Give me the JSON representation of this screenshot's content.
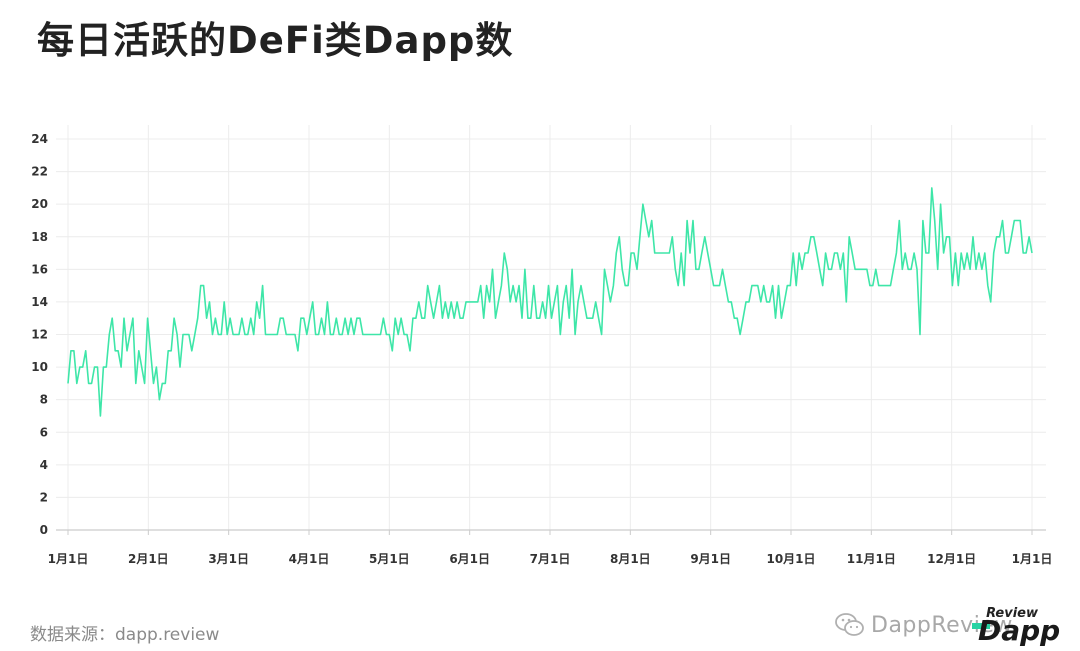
{
  "title": "每日活跃的DeFi类Dapp数",
  "source": "数据来源：dapp.review",
  "watermark": {
    "text": "DappReview",
    "icon": "wechat-icon"
  },
  "logo": {
    "review": "Review",
    "word": "Dapp"
  },
  "colors": {
    "line": "#3ee6a8",
    "grid": "#ececec",
    "axis": "#cccccc",
    "tick_text": "#333333"
  },
  "chart_data": {
    "type": "line",
    "title": "每日活跃的DeFi类Dapp数",
    "xlabel": "",
    "ylabel": "",
    "ylim": [
      0,
      24
    ],
    "yticks": [
      0,
      2,
      4,
      6,
      8,
      10,
      12,
      14,
      16,
      18,
      20,
      22,
      24
    ],
    "xticks": [
      "1月1日",
      "2月1日",
      "3月1日",
      "4月1日",
      "5月1日",
      "6月1日",
      "7月1日",
      "8月1日",
      "9月1日",
      "10月1日",
      "11月1日",
      "12月1日",
      "1月1日"
    ],
    "grid": true,
    "legend": "none",
    "series": [
      {
        "values": [
          9,
          11,
          11,
          9,
          10,
          10,
          11,
          9,
          9,
          10,
          10,
          7,
          10,
          10,
          12,
          13,
          11,
          11,
          10,
          13,
          11,
          12,
          13,
          9,
          11,
          10,
          9,
          13,
          11,
          9,
          10,
          8,
          9,
          9,
          11,
          11,
          13,
          12,
          10,
          12,
          12,
          12,
          11,
          12,
          13,
          15,
          15,
          13,
          14,
          12,
          13,
          12,
          12,
          14,
          12,
          13,
          12,
          12,
          12,
          13,
          12,
          12,
          13,
          12,
          14,
          13,
          15,
          12,
          12,
          12,
          12,
          12,
          13,
          13,
          12,
          12,
          12,
          12,
          11,
          13,
          13,
          12,
          13,
          14,
          12,
          12,
          13,
          12,
          14,
          12,
          12,
          13,
          12,
          12,
          13,
          12,
          13,
          12,
          13,
          13,
          12,
          12,
          12,
          12,
          12,
          12,
          12,
          13,
          12,
          12,
          11,
          13,
          12,
          13,
          12,
          12,
          11,
          13,
          13,
          14,
          13,
          13,
          15,
          14,
          13,
          14,
          15,
          13,
          14,
          13,
          14,
          13,
          14,
          13,
          13,
          14,
          14,
          14,
          14,
          14,
          15,
          13,
          15,
          14,
          16,
          13,
          14,
          15,
          17,
          16,
          14,
          15,
          14,
          15,
          13,
          16,
          13,
          13,
          15,
          13,
          13,
          14,
          13,
          15,
          13,
          14,
          15,
          12,
          14,
          15,
          13,
          16,
          12,
          14,
          15,
          14,
          13,
          13,
          13,
          14,
          13,
          12,
          16,
          15,
          14,
          15,
          17,
          18,
          16,
          15,
          15,
          17,
          17,
          16,
          18,
          20,
          19,
          18,
          19,
          17,
          17,
          17,
          17,
          17,
          17,
          18,
          16,
          15,
          17,
          15,
          19,
          17,
          19,
          16,
          16,
          17,
          18,
          17,
          16,
          15,
          15,
          15,
          16,
          15,
          14,
          14,
          13,
          13,
          12,
          13,
          14,
          14,
          15,
          15,
          15,
          14,
          15,
          14,
          14,
          15,
          13,
          15,
          13,
          14,
          15,
          15,
          17,
          15,
          17,
          16,
          17,
          17,
          18,
          18,
          17,
          16,
          15,
          17,
          16,
          16,
          17,
          17,
          16,
          17,
          14,
          18,
          17,
          16,
          16,
          16,
          16,
          16,
          15,
          15,
          16,
          15,
          15,
          15,
          15,
          15,
          16,
          17,
          19,
          16,
          17,
          16,
          16,
          17,
          16,
          12,
          19,
          17,
          17,
          21,
          19,
          16,
          20,
          17,
          18,
          18,
          15,
          17,
          15,
          17,
          16,
          17,
          16,
          18,
          16,
          17,
          16,
          17,
          15,
          14,
          17,
          18,
          18,
          19,
          17,
          17,
          18,
          19,
          19,
          19,
          17,
          17,
          18,
          17
        ]
      }
    ]
  }
}
